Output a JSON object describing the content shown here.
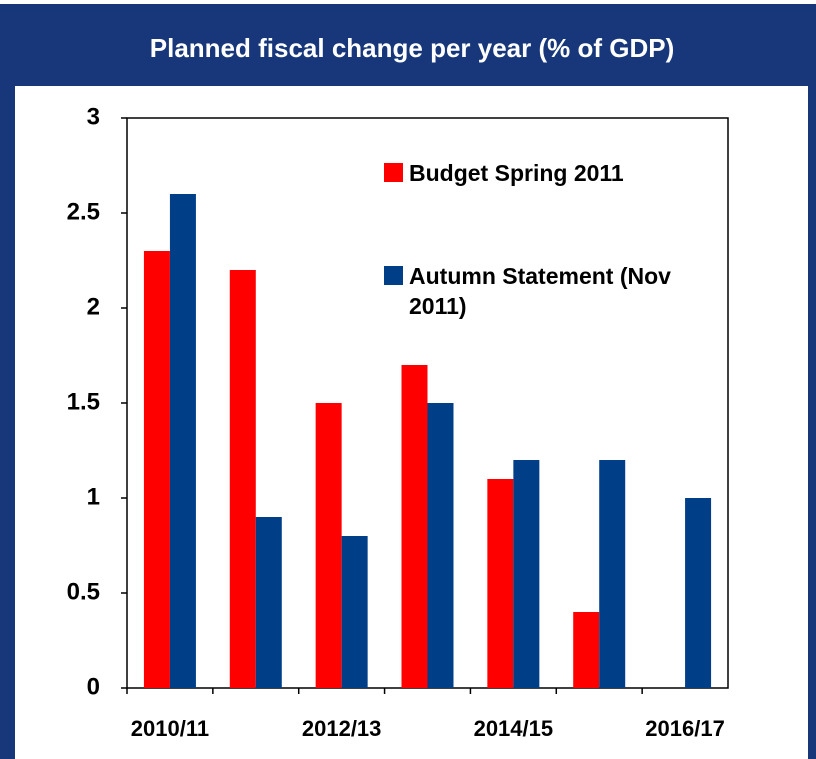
{
  "chart_data": {
    "type": "bar",
    "title": "Planned fiscal change per year (% of GDP)",
    "categories": [
      "2010/11",
      null,
      "2012/13",
      null,
      "2014/15",
      null,
      "2016/17"
    ],
    "series": [
      {
        "name": "Budget Spring 2011",
        "color": "#ff0000",
        "values": [
          2.3,
          2.2,
          1.5,
          1.7,
          1.1,
          0.4,
          null
        ]
      },
      {
        "name": "Autumn Statement (Nov 2011)",
        "color": "#003f87",
        "values": [
          2.6,
          0.9,
          0.8,
          1.5,
          1.2,
          1.2,
          1.0
        ]
      }
    ],
    "ylim": [
      0,
      3
    ],
    "yticks": [
      0,
      0.5,
      1,
      1.5,
      2,
      2.5,
      3
    ],
    "grid": false,
    "legend": "top-right"
  }
}
